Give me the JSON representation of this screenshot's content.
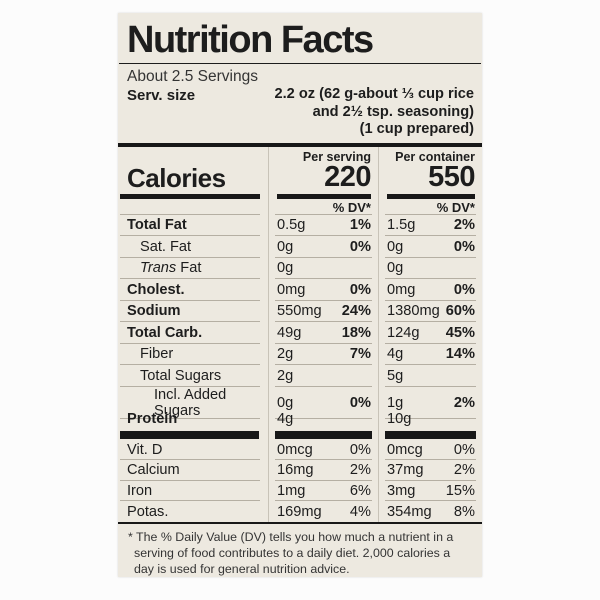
{
  "colors": {
    "label_bg": "#ede9e0",
    "text": "#1d1d1d",
    "thin_rule": "#b5afa3",
    "column_divider": "#c8c3b8",
    "black_bar": "#181818",
    "page_bg": "#fcfcfc"
  },
  "label": {
    "title": "Nutrition Facts",
    "servings_count": "About 2.5 Servings",
    "serving_size_label": "Serv. size",
    "serving_size_lines": [
      "2.2 oz (62 g-about ⅓ cup rice",
      "and 2½ tsp. seasoning)",
      "(1 cup prepared)"
    ],
    "calories": {
      "label": "Calories",
      "per_serving_header": "Per serving",
      "per_serving": "220",
      "per_container_header": "Per container",
      "per_container": "550"
    },
    "dv_header": "% DV*",
    "nutrients": [
      {
        "name": "Total Fat",
        "bold": true,
        "indent": 0,
        "per_serving": {
          "amount": "0.5g",
          "dv": "1%"
        },
        "per_container": {
          "amount": "1.5g",
          "dv": "2%"
        }
      },
      {
        "name": "Sat. Fat",
        "bold": false,
        "indent": 1,
        "per_serving": {
          "amount": "0g",
          "dv": "0%"
        },
        "per_container": {
          "amount": "0g",
          "dv": "0%"
        }
      },
      {
        "name": "Trans Fat",
        "italic_prefix": "Trans",
        "bold": false,
        "indent": 1,
        "per_serving": {
          "amount": "0g",
          "dv": ""
        },
        "per_container": {
          "amount": "0g",
          "dv": ""
        }
      },
      {
        "name": "Cholest.",
        "bold": true,
        "indent": 0,
        "per_serving": {
          "amount": "0mg",
          "dv": "0%"
        },
        "per_container": {
          "amount": "0mg",
          "dv": "0%"
        }
      },
      {
        "name": "Sodium",
        "bold": true,
        "indent": 0,
        "per_serving": {
          "amount": "550mg",
          "dv": "24%"
        },
        "per_container": {
          "amount": "1380mg",
          "dv": "60%"
        }
      },
      {
        "name": "Total Carb.",
        "bold": true,
        "indent": 0,
        "per_serving": {
          "amount": "49g",
          "dv": "18%"
        },
        "per_container": {
          "amount": "124g",
          "dv": "45%"
        }
      },
      {
        "name": "Fiber",
        "bold": false,
        "indent": 1,
        "per_serving": {
          "amount": "2g",
          "dv": "7%"
        },
        "per_container": {
          "amount": "4g",
          "dv": "14%"
        }
      },
      {
        "name": "Total Sugars",
        "bold": false,
        "indent": 1,
        "per_serving": {
          "amount": "2g",
          "dv": ""
        },
        "per_container": {
          "amount": "5g",
          "dv": ""
        }
      },
      {
        "name": "Incl. Added Sugars",
        "bold": false,
        "indent": 2,
        "per_serving": {
          "amount": "0g",
          "dv": "0%"
        },
        "per_container": {
          "amount": "1g",
          "dv": "2%"
        }
      },
      {
        "name": "Protein",
        "bold": true,
        "indent": 0,
        "per_serving": {
          "amount": "4g",
          "dv": ""
        },
        "per_container": {
          "amount": "10g",
          "dv": ""
        }
      }
    ],
    "vitamins": [
      {
        "name": "Vit. D",
        "bold": false,
        "indent": 0,
        "per_serving": {
          "amount": "0mcg",
          "dv": "0%"
        },
        "per_container": {
          "amount": "0mcg",
          "dv": "0%"
        }
      },
      {
        "name": "Calcium",
        "bold": false,
        "indent": 0,
        "per_serving": {
          "amount": "16mg",
          "dv": "2%"
        },
        "per_container": {
          "amount": "37mg",
          "dv": "2%"
        }
      },
      {
        "name": "Iron",
        "bold": false,
        "indent": 0,
        "per_serving": {
          "amount": "1mg",
          "dv": "6%"
        },
        "per_container": {
          "amount": "3mg",
          "dv": "15%"
        }
      },
      {
        "name": "Potas.",
        "bold": false,
        "indent": 0,
        "per_serving": {
          "amount": "169mg",
          "dv": "4%"
        },
        "per_container": {
          "amount": "354mg",
          "dv": "8%"
        }
      }
    ],
    "footnote": "* The % Daily Value (DV) tells you how much a nutrient in a serving of food contributes to a daily diet. 2,000 calories a day is used for general nutrition advice."
  }
}
